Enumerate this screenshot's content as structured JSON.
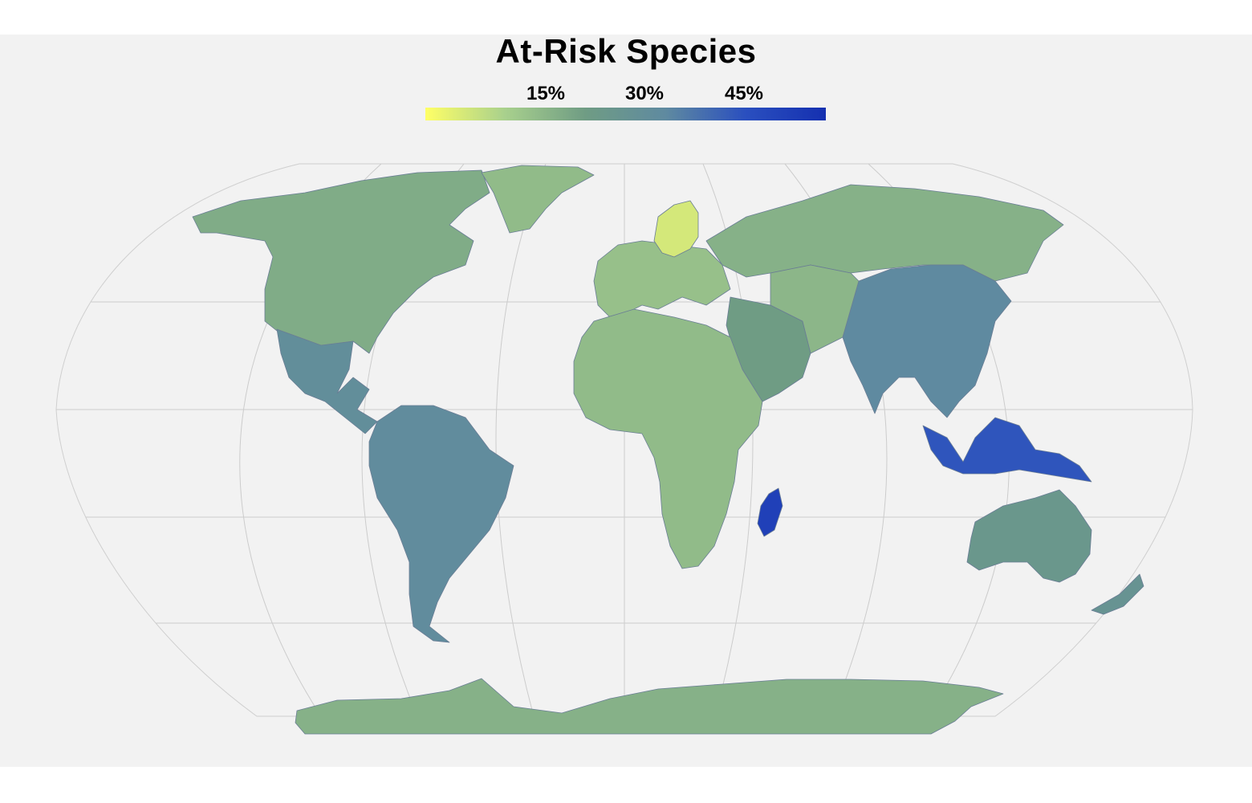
{
  "title": "At-Risk Species",
  "legend": {
    "ticks": [
      {
        "label": "15%",
        "value": 15
      },
      {
        "label": "30%",
        "value": 30
      },
      {
        "label": "45%",
        "value": 45
      }
    ],
    "range": [
      5,
      55
    ],
    "colors": [
      "#ffff66",
      "#a8d08d",
      "#6f9c84",
      "#5f8aa0",
      "#2a4fbf",
      "#1530b0"
    ]
  },
  "map": {
    "projection": "robinson",
    "background_color": "#f2f2f2",
    "graticule_color": "#c8c8c8",
    "border_color": "#6a7d95"
  },
  "chart_data": {
    "type": "choropleth",
    "title": "At-Risk Species",
    "colorscale_range": [
      5,
      55
    ],
    "regions": [
      {
        "name": "North America",
        "value": 22
      },
      {
        "name": "Greenland",
        "value": 19
      },
      {
        "name": "Mexico and Central America",
        "value": 33
      },
      {
        "name": "South America",
        "value": 34
      },
      {
        "name": "Europe",
        "value": 18
      },
      {
        "name": "Fennoscandia",
        "value": 10
      },
      {
        "name": "Russia",
        "value": 21
      },
      {
        "name": "Africa",
        "value": 19
      },
      {
        "name": "Madagascar",
        "value": 50
      },
      {
        "name": "Middle East",
        "value": 25
      },
      {
        "name": "Central Asia",
        "value": 20
      },
      {
        "name": "South and East Asia",
        "value": 35
      },
      {
        "name": "Maritime Southeast Asia",
        "value": 44
      },
      {
        "name": "Australia",
        "value": 28
      },
      {
        "name": "New Zealand",
        "value": 30
      },
      {
        "name": "Antarctica",
        "value": 21
      }
    ]
  }
}
